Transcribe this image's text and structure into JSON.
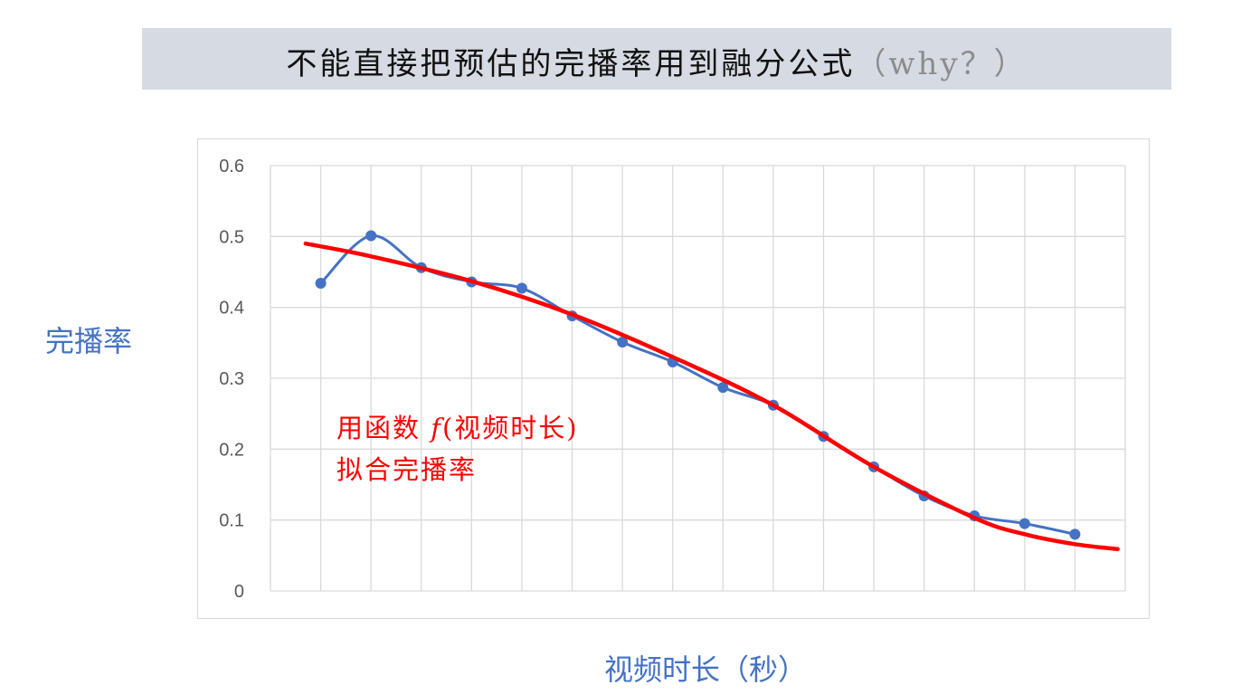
{
  "title": {
    "main": "不能直接把预估的完播率用到融分公式",
    "question": "（why？）"
  },
  "chart_data": {
    "type": "line",
    "xlabel": "视频时长（秒）",
    "ylabel": "完播率",
    "ylim": [
      0,
      0.6
    ],
    "xlim": [
      0,
      17
    ],
    "yticks": [
      "0",
      "0.1",
      "0.2",
      "0.3",
      "0.4",
      "0.5",
      "0.6"
    ],
    "grid": true,
    "series": [
      {
        "color": "#4472c4",
        "smooth": true,
        "markers": true,
        "x": [
          1,
          2,
          3,
          4,
          5,
          6,
          7,
          8,
          9,
          10,
          11,
          12,
          13,
          14,
          15,
          16
        ],
        "y": [
          0.434,
          0.501,
          0.456,
          0.436,
          0.427,
          0.388,
          0.351,
          0.323,
          0.287,
          0.262,
          0.218,
          0.175,
          0.134,
          0.106,
          0.095,
          0.08
        ]
      },
      {
        "color": "#ff0000",
        "smooth": true,
        "markers": false,
        "x": [
          0.7,
          2,
          4,
          6,
          8,
          10,
          12,
          14,
          15,
          16,
          16.85
        ],
        "y": [
          0.49,
          0.472,
          0.437,
          0.39,
          0.33,
          0.262,
          0.175,
          0.103,
          0.08,
          0.066,
          0.059
        ]
      }
    ],
    "annotation": {
      "line1_prefix": "用函数 ",
      "func": "f",
      "line1_suffix": "(视频时长)",
      "line2": "拟合完播率"
    }
  }
}
